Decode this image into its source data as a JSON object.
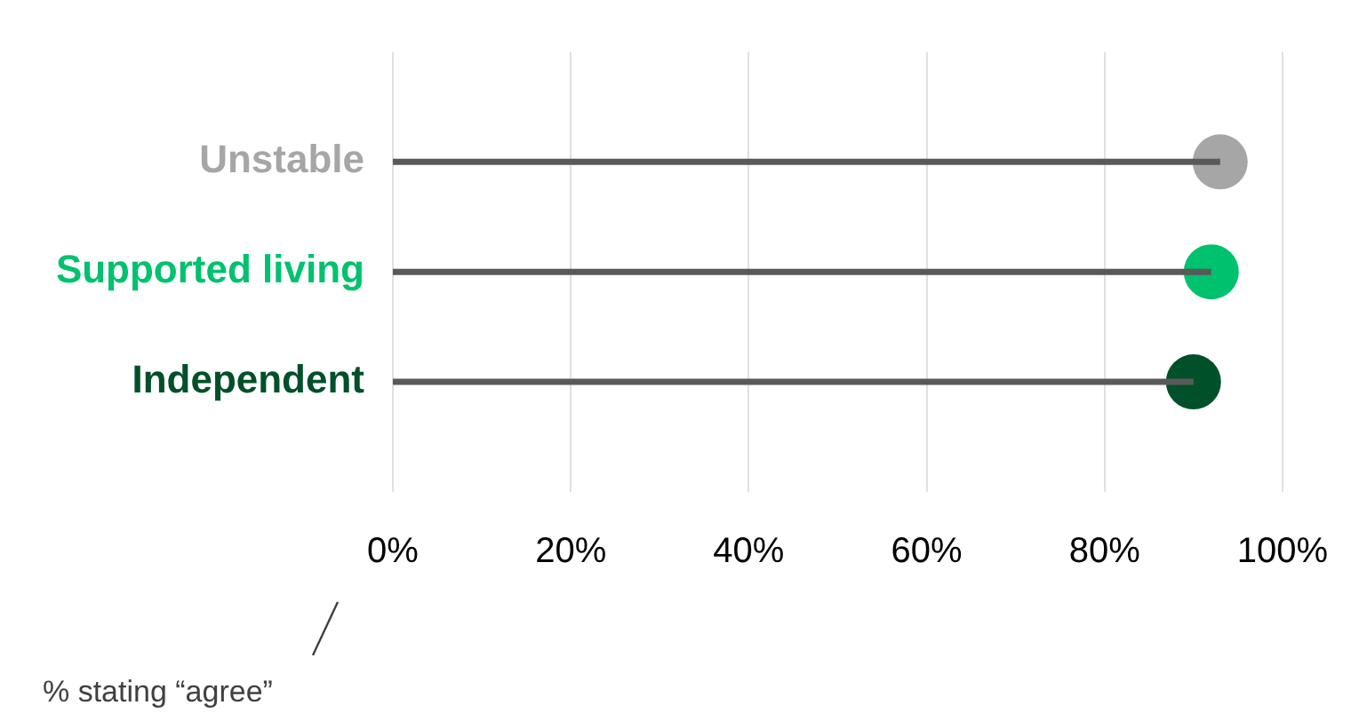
{
  "chart_data": {
    "type": "lollipop",
    "orientation": "horizontal",
    "categories": [
      "Unstable",
      "Supported living",
      "Independent"
    ],
    "values": [
      93,
      92,
      90
    ],
    "colors": [
      "#a6a6a6",
      "#00c16e",
      "#00502a"
    ],
    "xlim": [
      0,
      100
    ],
    "xticks": [
      {
        "value": 0,
        "label": "0%"
      },
      {
        "value": 20,
        "label": "20%"
      },
      {
        "value": 40,
        "label": "40%"
      },
      {
        "value": 60,
        "label": "60%"
      },
      {
        "value": 80,
        "label": "80%"
      },
      {
        "value": 100,
        "label": "100%"
      }
    ],
    "grid": "x",
    "legend": false,
    "marker": "circle",
    "annotations": [
      "% stating “agree”"
    ]
  }
}
